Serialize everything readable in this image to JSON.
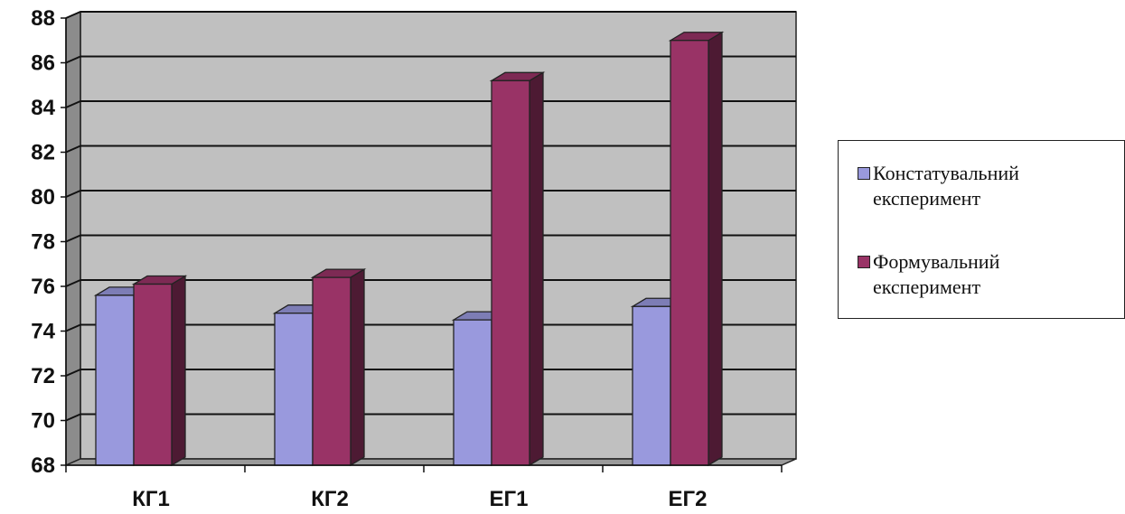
{
  "chart_data": {
    "type": "bar",
    "categories": [
      "КГ1",
      "КГ2",
      "ЕГ1",
      "ЕГ2"
    ],
    "series": [
      {
        "name": "Констатувальний експеримент",
        "values": [
          75.6,
          74.8,
          74.5,
          75.1
        ],
        "color": "#9999dd"
      },
      {
        "name": "Формувальний експеримент",
        "values": [
          76.1,
          76.4,
          85.2,
          87.0
        ],
        "color": "#993366"
      }
    ],
    "ylim": [
      68,
      88
    ],
    "yticks": [
      "68",
      "70",
      "72",
      "74",
      "76",
      "78",
      "80",
      "82",
      "84",
      "86",
      "88"
    ],
    "grid": true,
    "legend_position": "right",
    "style": "3d-column"
  },
  "legend": {
    "items": [
      {
        "line1": "Констатувальний",
        "line2": "експеримент"
      },
      {
        "line1": "Формувальний",
        "line2": "експеримент"
      }
    ]
  }
}
